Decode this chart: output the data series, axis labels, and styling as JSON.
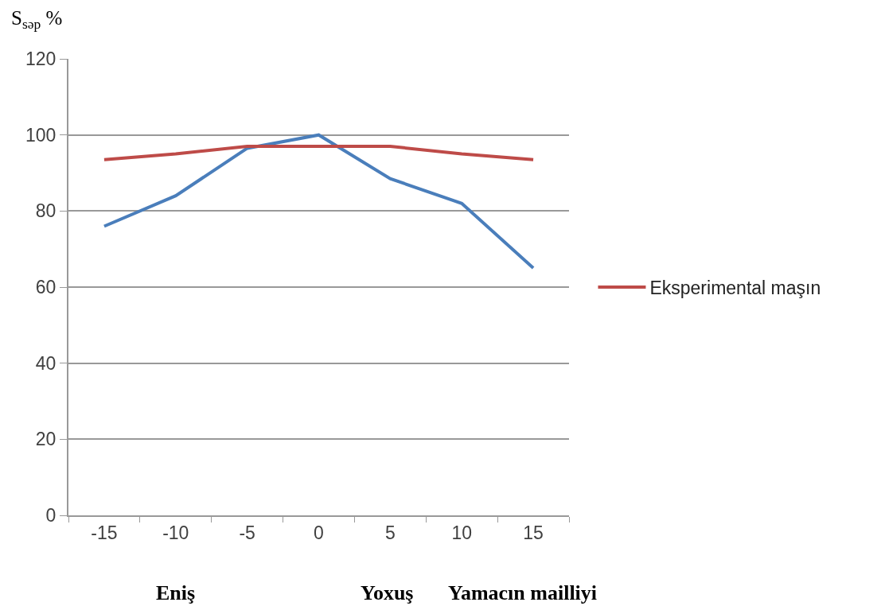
{
  "chart_data": {
    "type": "line",
    "ylabel": "S$_{səp}$ %",
    "xlabel": "Yamacın mailliyi",
    "annotations": [
      "Eniş",
      "Yoxuş"
    ],
    "categories": [
      "-15",
      "-10",
      "-5",
      "0",
      "5",
      "10",
      "15"
    ],
    "series": [
      {
        "color": "#4a7ebb",
        "values": [
          76,
          84,
          96.5,
          100,
          88.5,
          82,
          65
        ]
      },
      {
        "name": "Eksperimental maşın",
        "color": "#be4b48",
        "values": [
          93.5,
          95,
          97,
          97,
          97,
          95,
          93.5
        ]
      }
    ],
    "ylim": [
      0,
      120
    ],
    "yticks": [
      0,
      20,
      40,
      60,
      80,
      100,
      120
    ],
    "grid": "y",
    "legend": "right",
    "marker": "none",
    "line_style": "solid"
  }
}
